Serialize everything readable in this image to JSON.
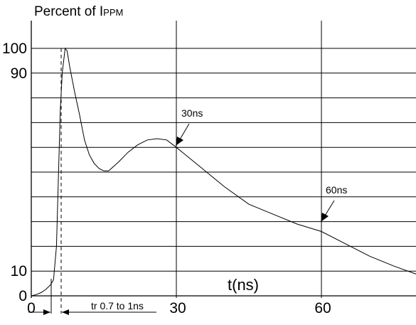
{
  "chart_data": {
    "type": "line",
    "title": "Percent of I",
    "title_subscript": "PPM",
    "xlabel": "t(ns)",
    "ylabel": "",
    "xlim": [
      0,
      81
    ],
    "ylim": [
      0,
      100
    ],
    "x_ticks": [
      0,
      30,
      60
    ],
    "y_ticks": [
      0,
      10,
      90,
      100
    ],
    "y_gridlines": [
      0,
      10,
      20,
      30,
      40,
      50,
      60,
      70,
      80,
      90,
      100
    ],
    "x_gridlines": [
      0,
      30,
      60
    ],
    "grid": true,
    "series": [
      {
        "x": [
          0,
          1,
          2,
          3,
          4,
          4.6,
          5.2,
          6.0,
          6.4,
          7.0,
          7.4,
          8,
          9,
          10,
          11,
          12,
          13,
          14,
          15,
          16,
          18,
          20,
          22,
          24,
          26,
          28,
          30,
          35,
          40,
          45,
          50,
          55,
          60,
          65,
          70,
          75,
          80
        ],
        "values": [
          0,
          0.5,
          1.3,
          2.6,
          4.5,
          6.5,
          20,
          75,
          90,
          100,
          99,
          92,
          82,
          73,
          63,
          57,
          53.5,
          51.5,
          50.5,
          50.5,
          54,
          58,
          61,
          63,
          63.5,
          63,
          60,
          52,
          44,
          37,
          33,
          29,
          26,
          21,
          16,
          12,
          8.5
        ]
      }
    ],
    "annotations": [
      {
        "text": "30ns",
        "x": 30,
        "y": 60
      },
      {
        "text": "60ns",
        "x": 60,
        "y": 29
      },
      {
        "text": "tr 0.7 to 1ns"
      }
    ]
  }
}
